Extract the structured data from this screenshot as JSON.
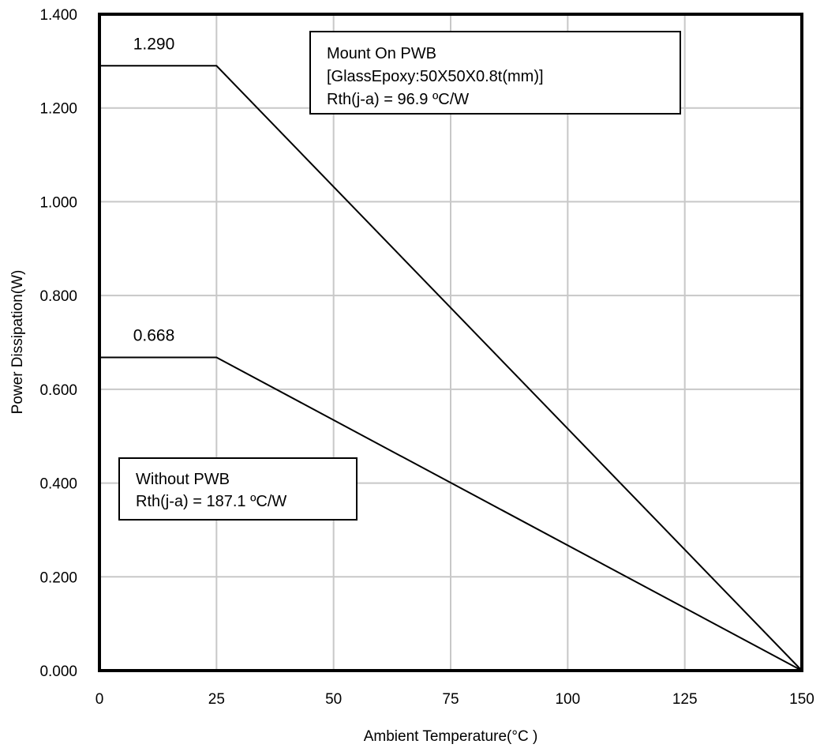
{
  "chart_data": {
    "type": "line",
    "xlabel": "Ambient Temperature(°C )",
    "ylabel": "Power Dissipation(W)",
    "xlim": [
      0,
      150
    ],
    "ylim": [
      0,
      1.4
    ],
    "x_ticks": [
      "0",
      "25",
      "50",
      "75",
      "100",
      "125",
      "150"
    ],
    "y_ticks": [
      "0.000",
      "0.200",
      "0.400",
      "0.600",
      "0.800",
      "1.000",
      "1.200",
      "1.400"
    ],
    "grid": true,
    "series": [
      {
        "x": [
          0,
          25,
          150
        ],
        "y": [
          1.29,
          1.29,
          0.0
        ],
        "peak_label": "1.290"
      },
      {
        "x": [
          0,
          25,
          150
        ],
        "y": [
          0.668,
          0.668,
          0.0
        ],
        "peak_label": "0.668"
      }
    ],
    "annotations": [
      {
        "lines": [
          "Mount On PWB",
          "[GlassEpoxy:50X50X0.8t(mm)]",
          " Rth(j-a) = 96.9 ºC/W"
        ]
      },
      {
        "lines": [
          "Without PWB",
          "Rth(j-a) = 187.1 ºC/W"
        ]
      }
    ]
  }
}
